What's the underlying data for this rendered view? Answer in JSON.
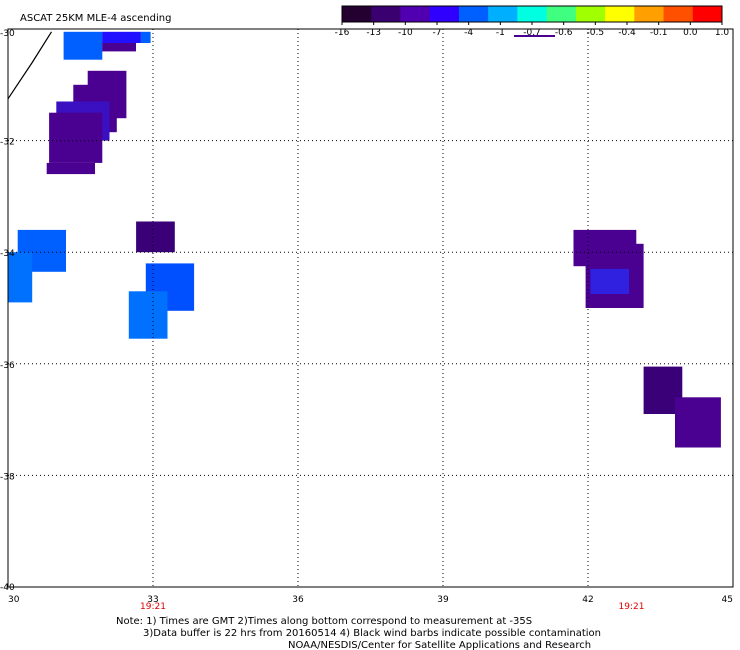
{
  "title": "ASCAT 25KM MLE-4 ascending",
  "colorbar": {
    "ticks": [
      "-16",
      "-13",
      "-10",
      "-7",
      "-4",
      "-1",
      "-0.7",
      "-0.6",
      "-0.5",
      "-0.4",
      "-0.1",
      "0.0",
      "1.0"
    ],
    "colors": [
      "#240030",
      "#3a0070",
      "#5000b0",
      "#3000ff",
      "#0060ff",
      "#00b0ff",
      "#00ffe0",
      "#40ff80",
      "#a0ff00",
      "#ffff00",
      "#ffa000",
      "#ff5000",
      "#ff0000"
    ]
  },
  "axes": {
    "lon_ticks": [
      "30",
      "33",
      "36",
      "39",
      "42",
      "45"
    ],
    "lat_ticks": [
      "-30",
      "-32",
      "-34",
      "-36",
      "-38",
      "-40"
    ],
    "lon_range": [
      30,
      45
    ],
    "lat_range": [
      -30,
      -40
    ]
  },
  "time_labels": [
    {
      "text": "19:21",
      "lon": 33.0
    },
    {
      "text": "19:21",
      "lon": 42.9
    }
  ],
  "notes": {
    "line1": "Note: 1) Times are GMT 2)Times along bottom correspond to measurement at -35S",
    "line2": "3)Data buffer is 22 hrs from 20160514 4) Black wind barbs indicate possible contamination",
    "line3": "NOAA/NESDIS/Center for Satellite Applications and Research"
  },
  "chart_data": {
    "type": "heatmap",
    "title": "ASCAT 25KM MLE-4 ascending",
    "xlim": [
      30,
      45
    ],
    "ylim": [
      -40,
      -30
    ],
    "grid": true,
    "cells": [
      {
        "lon0": 31.15,
        "lon1": 31.95,
        "lat0": -30.05,
        "lat1": -30.55,
        "color": "#0060ff"
      },
      {
        "lon0": 31.95,
        "lon1": 32.75,
        "lat0": -30.05,
        "lat1": -30.25,
        "color": "#2010ff"
      },
      {
        "lon0": 32.75,
        "lon1": 32.95,
        "lat0": -30.05,
        "lat1": -30.25,
        "color": "#0060ff"
      },
      {
        "lon0": 31.95,
        "lon1": 32.65,
        "lat0": -30.25,
        "lat1": -30.4,
        "color": "#4a0090"
      },
      {
        "lon0": 31.65,
        "lon1": 32.45,
        "lat0": -30.75,
        "lat1": -31.6,
        "color": "#4a0090"
      },
      {
        "lon0": 31.35,
        "lon1": 32.25,
        "lat0": -31.0,
        "lat1": -31.85,
        "color": "#4a0090"
      },
      {
        "lon0": 31.0,
        "lon1": 32.1,
        "lat0": -31.3,
        "lat1": -32.0,
        "color": "#3a10c0"
      },
      {
        "lon0": 30.85,
        "lon1": 31.95,
        "lat0": -31.5,
        "lat1": -32.4,
        "color": "#4a0090"
      },
      {
        "lon0": 30.8,
        "lon1": 31.8,
        "lat0": -32.4,
        "lat1": -32.6,
        "color": "#4a0090"
      },
      {
        "lon0": 30.2,
        "lon1": 31.2,
        "lat0": -33.6,
        "lat1": -34.35,
        "color": "#0060ff"
      },
      {
        "lon0": 30.0,
        "lon1": 30.5,
        "lat0": -34.0,
        "lat1": -34.9,
        "color": "#0070ff"
      },
      {
        "lon0": 32.65,
        "lon1": 33.45,
        "lat0": -33.45,
        "lat1": -34.0,
        "color": "#3a0078"
      },
      {
        "lon0": 32.85,
        "lon1": 33.85,
        "lat0": -34.2,
        "lat1": -35.05,
        "color": "#0050ff"
      },
      {
        "lon0": 32.5,
        "lon1": 33.3,
        "lat0": -34.7,
        "lat1": -35.55,
        "color": "#0070ff"
      },
      {
        "lon0": 41.7,
        "lon1": 43.0,
        "lat0": -33.6,
        "lat1": -34.25,
        "color": "#4a0090"
      },
      {
        "lon0": 41.95,
        "lon1": 43.15,
        "lat0": -33.85,
        "lat1": -35.0,
        "color": "#4a0090"
      },
      {
        "lon0": 42.05,
        "lon1": 42.85,
        "lat0": -34.3,
        "lat1": -34.75,
        "color": "#3020e0"
      },
      {
        "lon0": 43.15,
        "lon1": 43.95,
        "lat0": -36.05,
        "lat1": -36.9,
        "color": "#3a0078"
      },
      {
        "lon0": 43.8,
        "lon1": 44.75,
        "lat0": -36.6,
        "lat1": -37.5,
        "color": "#4a0090"
      }
    ],
    "coast_line": [
      {
        "lon": 30.0,
        "lat": -31.25
      },
      {
        "lon": 30.5,
        "lat": -30.6
      },
      {
        "lon": 30.9,
        "lat": -30.05
      }
    ]
  }
}
